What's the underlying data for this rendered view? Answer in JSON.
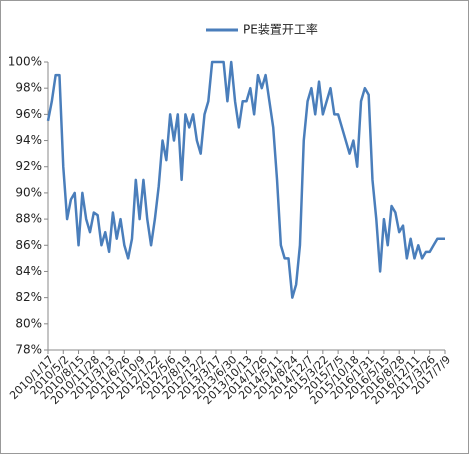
{
  "chart_data": {
    "type": "line",
    "categories": [
      "2010/1/17",
      null,
      null,
      null,
      "2010/5/2",
      null,
      null,
      null,
      "2010/8/15",
      null,
      null,
      null,
      "2010/11/28",
      null,
      null,
      null,
      "2011/3/13",
      null,
      null,
      null,
      "2011/6/26",
      null,
      null,
      null,
      "2011/10/9",
      null,
      null,
      null,
      "2012/1/22",
      null,
      null,
      null,
      "2012/5/6",
      null,
      null,
      null,
      "2012/8/19",
      null,
      null,
      null,
      "2012/12/2",
      null,
      null,
      null,
      "2013/3/17",
      null,
      null,
      null,
      "2013/6/30",
      null,
      null,
      null,
      "2013/10/13",
      null,
      null,
      null,
      "2014/1/26",
      null,
      null,
      null,
      "2014/5/11",
      null,
      null,
      null,
      "2014/8/24",
      null,
      null,
      null,
      "2014/12/7",
      null,
      null,
      null,
      "2015/3/22",
      null,
      null,
      null,
      "2015/7/5",
      null,
      null,
      null,
      "2015/10/18",
      null,
      null,
      null,
      "2016/1/31",
      null,
      null,
      null,
      "2016/5/15",
      null,
      null,
      null,
      "2016/8/28",
      null,
      null,
      null,
      "2016/12/11",
      null,
      null,
      null,
      "2017/3/26",
      null,
      null,
      null,
      "2017/7/9"
    ],
    "series": [
      {
        "name": "PE装置开工率",
        "color": "#4a7ebb",
        "values": [
          95.5,
          97,
          99,
          99,
          92,
          88,
          89.5,
          90,
          86,
          90,
          88,
          87,
          88.5,
          88.3,
          86,
          87,
          85.5,
          88.5,
          86.5,
          88,
          86,
          85,
          86.5,
          91,
          88,
          91,
          88,
          86,
          88,
          90.5,
          94,
          92.5,
          96,
          94,
          96,
          91,
          96,
          95,
          96,
          94,
          93,
          96,
          97,
          100,
          100,
          100,
          100,
          97,
          100,
          97,
          95,
          97,
          97,
          98,
          96,
          99,
          98,
          99,
          97,
          95,
          91,
          86,
          85,
          85,
          82,
          83,
          86,
          94,
          97,
          98,
          96,
          98.5,
          96,
          97,
          98,
          96,
          96,
          95,
          94,
          93,
          94,
          92,
          97,
          98,
          97.5,
          91,
          88,
          84,
          88,
          86,
          89,
          88.5,
          87,
          87.5,
          85,
          86.5,
          85,
          86,
          85,
          85.5,
          85.5,
          86,
          86.5,
          86.5,
          86.5
        ]
      }
    ],
    "ylim": [
      78,
      100
    ],
    "yticks": [
      {
        "value": 78,
        "label": "78%"
      },
      {
        "value": 80,
        "label": "80%"
      },
      {
        "value": 82,
        "label": "82%"
      },
      {
        "value": 84,
        "label": "84%"
      },
      {
        "value": 86,
        "label": "86%"
      },
      {
        "value": 88,
        "label": "88%"
      },
      {
        "value": 90,
        "label": "90%"
      },
      {
        "value": 92,
        "label": "92%"
      },
      {
        "value": 94,
        "label": "94%"
      },
      {
        "value": 96,
        "label": "96%"
      },
      {
        "value": 98,
        "label": "98%"
      },
      {
        "value": 100,
        "label": "100%"
      }
    ],
    "grid": false,
    "legend": "top"
  }
}
